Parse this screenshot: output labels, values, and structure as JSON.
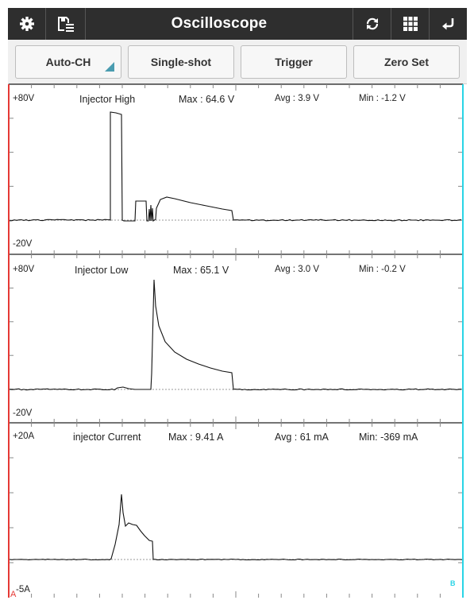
{
  "app": {
    "title": "Oscilloscope"
  },
  "toolbar": {
    "auto_ch_label": "Auto-CH",
    "single_shot_label": "Single-shot",
    "trigger_label": "Trigger",
    "zero_set_label": "Zero Set"
  },
  "icons": {
    "settings": "gear-icon",
    "save": "save-list-icon",
    "refresh": "refresh-icon",
    "grid": "grid-icon",
    "back": "return-icon"
  },
  "colors": {
    "topbar_bg": "#2e2e2e",
    "cursor_a": "#e53935",
    "cursor_b": "#29d4e6",
    "trace": "#111111",
    "accent_triangle": "#4a9cb0"
  },
  "channels": [
    {
      "name": "Injector High",
      "max_label": "Max : 64.6 V",
      "avg_label": "Avg : 3.9 V",
      "min_label": "Min : -1.2 V",
      "top_label": "+80V",
      "bottom_label": "-20V",
      "scale_top": 80,
      "scale_bottom": -20,
      "unit": "V"
    },
    {
      "name": "Injector Low",
      "max_label": "Max : 65.1 V",
      "avg_label": "Avg : 3.0 V",
      "min_label": "Min : -0.2 V",
      "top_label": "+80V",
      "bottom_label": "-20V",
      "scale_top": 80,
      "scale_bottom": -20,
      "unit": "V"
    },
    {
      "name": "injector Current",
      "max_label": "Max  : 9.41 A",
      "avg_label": "Avg : 61 mA",
      "min_label": "Min: -369 mA",
      "top_label": "+20A",
      "bottom_label": "-5A",
      "scale_top": 20,
      "scale_bottom": -5,
      "unit": "A"
    }
  ],
  "cursors": {
    "a_label": "A",
    "b_label": "B"
  }
}
